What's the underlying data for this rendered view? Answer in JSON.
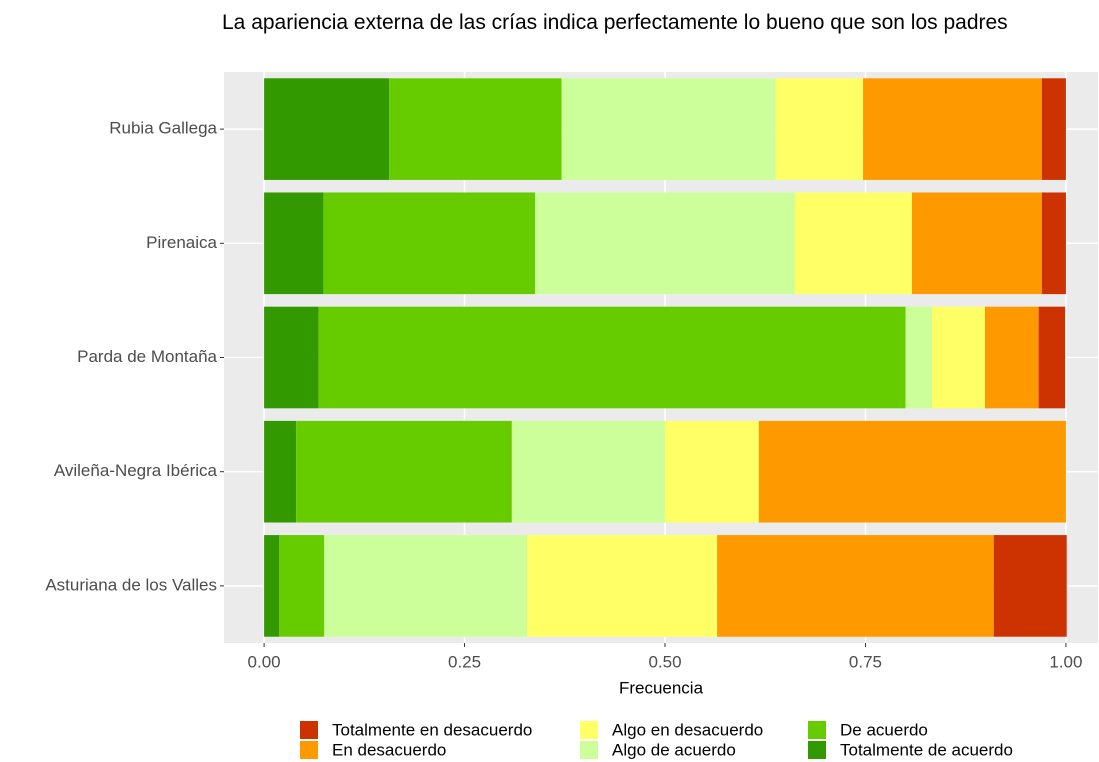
{
  "chart_data": {
    "type": "stacked_bar_horizontal",
    "title": "La apariencia externa de las crías indica perfectamente lo bueno que son los padres",
    "xlabel": "Frecuencia",
    "categories": [
      "Rubia Gallega",
      "Pirenaica",
      "Parda de Montaña",
      "Avileña-Negra Ibérica",
      "Asturiana de los Valles"
    ],
    "series": [
      {
        "name": "Totalmente en desacuerdo",
        "color": "#cc3300",
        "values": [
          0.03,
          0.03,
          0.033,
          0,
          0.091
        ]
      },
      {
        "name": "En desacuerdo",
        "color": "#ff9900",
        "values": [
          0.223,
          0.162,
          0.067,
          0.383,
          0.345
        ]
      },
      {
        "name": "Algo en desacuerdo",
        "color": "#ffff66",
        "values": [
          0.109,
          0.146,
          0.066,
          0.117,
          0.237
        ]
      },
      {
        "name": "Algo de acuerdo",
        "color": "#ccff99",
        "values": [
          0.267,
          0.324,
          0.033,
          0.191,
          0.253
        ]
      },
      {
        "name": "De acuerdo",
        "color": "#66cc00",
        "values": [
          0.215,
          0.264,
          0.732,
          0.269,
          0.056
        ]
      },
      {
        "name": "Totalmente de acuerdo",
        "color": "#339900",
        "values": [
          0.156,
          0.074,
          0.068,
          0.04,
          0.019
        ]
      }
    ],
    "xlim": [
      -0.05,
      1.04
    ],
    "xticks": [
      {
        "value": 0,
        "label": "0.00"
      },
      {
        "value": 0.25,
        "label": "0.25"
      },
      {
        "value": 0.5,
        "label": "0.50"
      },
      {
        "value": 0.75,
        "label": "0.75"
      },
      {
        "value": 1,
        "label": "1.00"
      }
    ],
    "grid": true,
    "legend": "bottom"
  }
}
